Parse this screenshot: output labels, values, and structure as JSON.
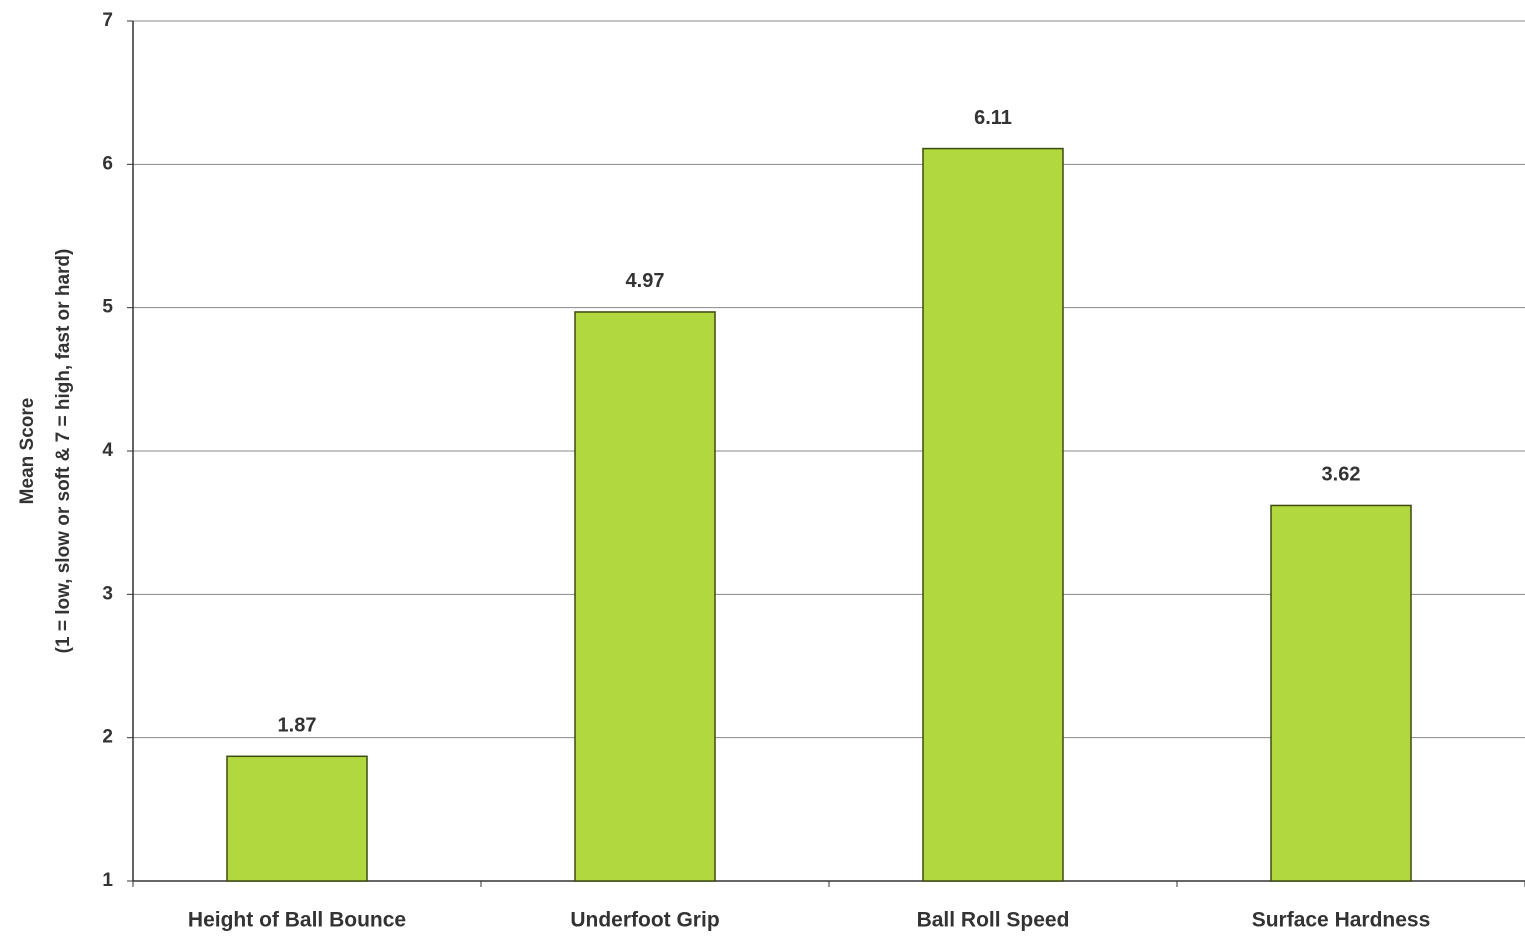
{
  "chart_data": {
    "type": "bar",
    "y_label": [
      "Mean Score",
      "(1 = low, slow or soft & 7 = high, fast or hard)"
    ],
    "categories": [
      "Height of Ball Bounce",
      "Underfoot Grip",
      "Ball Roll Speed",
      "Surface Hardness"
    ],
    "values": [
      1.87,
      4.97,
      6.11,
      3.62
    ],
    "color": "#b1d93f",
    "ylim": [
      1,
      7
    ],
    "yticks": [
      1,
      2,
      3,
      4,
      5,
      6,
      7
    ],
    "grid": true
  }
}
